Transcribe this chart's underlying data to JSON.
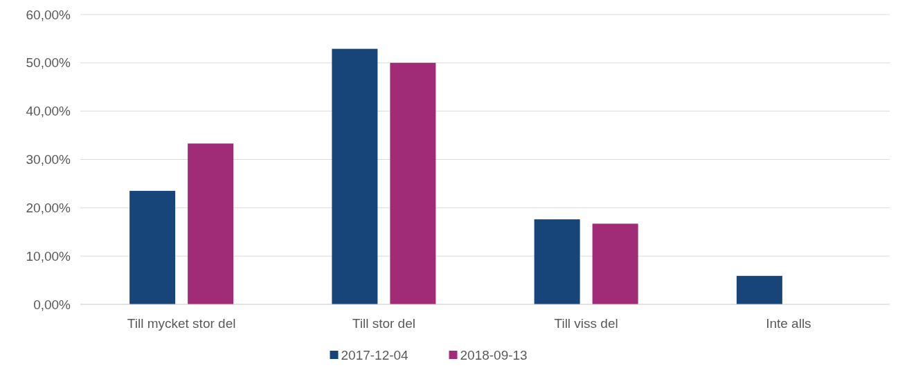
{
  "chart_data": {
    "type": "bar",
    "categories": [
      "Till mycket stor del",
      "Till stor del",
      "Till viss del",
      "Inte alls"
    ],
    "series": [
      {
        "name": "2017-12-04",
        "color": "#17457a",
        "values": [
          23.5,
          52.9,
          17.6,
          5.9
        ]
      },
      {
        "name": "2018-09-13",
        "color": "#a02b76",
        "values": [
          33.3,
          50,
          16.7,
          0
        ]
      }
    ],
    "ylim": [
      0,
      60
    ],
    "yticks": [
      {
        "value": 0,
        "label": "0,00%"
      },
      {
        "value": 10,
        "label": "10,00%"
      },
      {
        "value": 20,
        "label": "20,00%"
      },
      {
        "value": 30,
        "label": "30,00%"
      },
      {
        "value": 40,
        "label": "40,00%"
      },
      {
        "value": 50,
        "label": "50,00%"
      },
      {
        "value": 60,
        "label": "60,00%"
      }
    ],
    "grid": "y",
    "legend": "bottom"
  }
}
